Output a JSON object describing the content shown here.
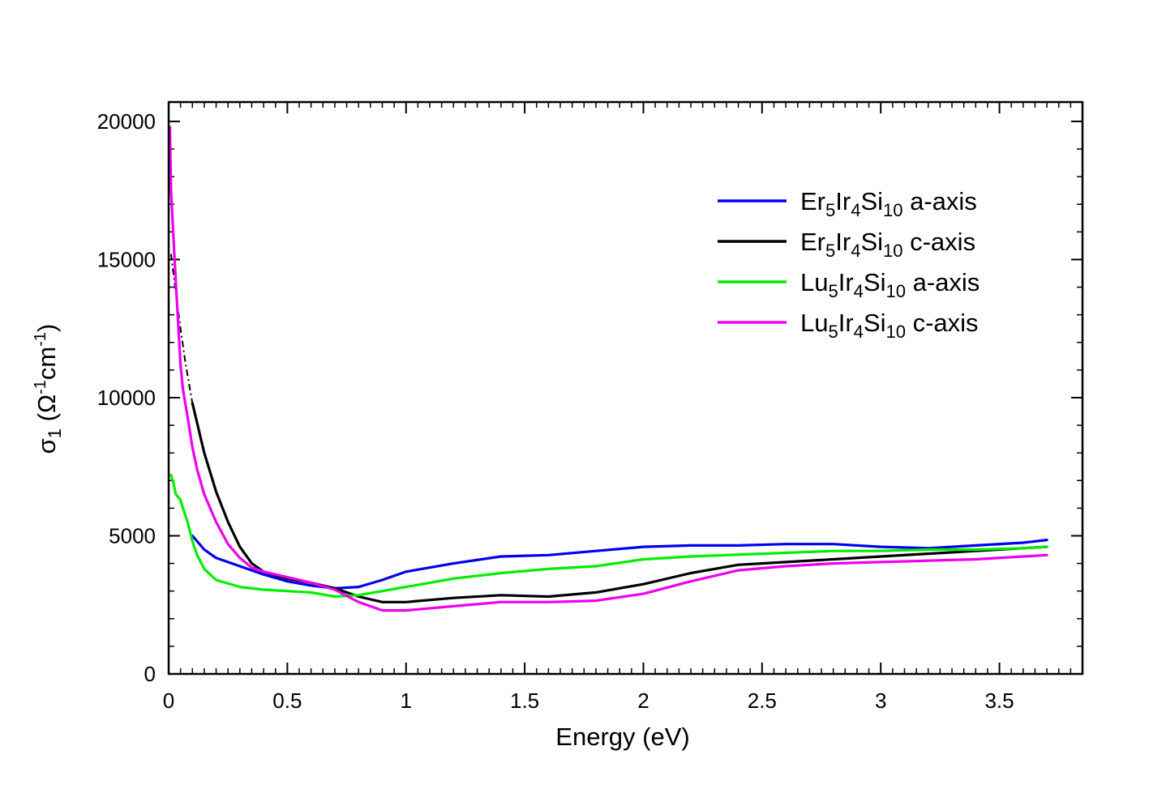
{
  "chart_data": {
    "type": "line",
    "title": "",
    "xlabel": "Energy (eV)",
    "ylabel": {
      "symbol": "σ",
      "subscript": "1",
      "units_open": " (Ω",
      "exp1": "-1",
      "cm": "cm",
      "exp2": "-1",
      "units_close": ")"
    },
    "xlim": [
      0,
      3.85
    ],
    "ylim": [
      0,
      20700
    ],
    "x_ticks": [
      {
        "value": 0,
        "label": "0"
      },
      {
        "value": 0.5,
        "label": "0.5"
      },
      {
        "value": 1,
        "label": "1"
      },
      {
        "value": 1.5,
        "label": "1.5"
      },
      {
        "value": 2,
        "label": "2"
      },
      {
        "value": 2.5,
        "label": "2.5"
      },
      {
        "value": 3,
        "label": "3"
      },
      {
        "value": 3.5,
        "label": "3.5"
      }
    ],
    "y_ticks": [
      {
        "value": 0,
        "label": "0"
      },
      {
        "value": 5000,
        "label": "5000"
      },
      {
        "value": 10000,
        "label": "10000"
      },
      {
        "value": 15000,
        "label": "15000"
      },
      {
        "value": 20000,
        "label": "20000"
      }
    ],
    "grid": false,
    "legend_position": "upper-right",
    "series": [
      {
        "name": "Er5Ir4Si10 a-axis",
        "label_parts": [
          {
            "text": "Er"
          },
          {
            "text": "5",
            "sub": true
          },
          {
            "text": "Ir"
          },
          {
            "text": "4",
            "sub": true
          },
          {
            "text": "Si"
          },
          {
            "text": "10",
            "sub": true
          },
          {
            "text": " a-axis"
          }
        ],
        "color": "#0000ee",
        "x": [
          0.1,
          0.15,
          0.2,
          0.3,
          0.4,
          0.5,
          0.6,
          0.7,
          0.8,
          0.9,
          1.0,
          1.2,
          1.4,
          1.6,
          1.8,
          2.0,
          2.2,
          2.4,
          2.6,
          2.8,
          3.0,
          3.2,
          3.4,
          3.6,
          3.7
        ],
        "y": [
          5000,
          4500,
          4200,
          3900,
          3600,
          3350,
          3200,
          3100,
          3150,
          3400,
          3700,
          4000,
          4250,
          4300,
          4450,
          4600,
          4650,
          4650,
          4700,
          4700,
          4600,
          4550,
          4650,
          4750,
          4850
        ]
      },
      {
        "name": "Er5Ir4Si10 c-axis",
        "label_parts": [
          {
            "text": "Er"
          },
          {
            "text": "5",
            "sub": true
          },
          {
            "text": "Ir"
          },
          {
            "text": "4",
            "sub": true
          },
          {
            "text": "Si"
          },
          {
            "text": "10",
            "sub": true
          },
          {
            "text": " c-axis"
          }
        ],
        "color": "#000000",
        "x": [
          0.1,
          0.15,
          0.2,
          0.25,
          0.3,
          0.35,
          0.4,
          0.5,
          0.6,
          0.7,
          0.8,
          0.9,
          1.0,
          1.2,
          1.4,
          1.6,
          1.8,
          2.0,
          2.2,
          2.4,
          2.6,
          2.8,
          3.0,
          3.2,
          3.4,
          3.6,
          3.7
        ],
        "y": [
          9800,
          8000,
          6600,
          5500,
          4600,
          4000,
          3700,
          3450,
          3300,
          3100,
          2800,
          2600,
          2600,
          2750,
          2850,
          2800,
          2950,
          3250,
          3650,
          3950,
          4050,
          4150,
          4250,
          4350,
          4450,
          4550,
          4600
        ]
      },
      {
        "name": "Lu5Ir4Si10 a-axis",
        "label_parts": [
          {
            "text": "Lu"
          },
          {
            "text": "5",
            "sub": true
          },
          {
            "text": "Ir"
          },
          {
            "text": "4",
            "sub": true
          },
          {
            "text": "Si"
          },
          {
            "text": "10",
            "sub": true
          },
          {
            "text": " a-axis"
          }
        ],
        "color": "#00ee00",
        "x": [
          0.01,
          0.02,
          0.03,
          0.04,
          0.05,
          0.06,
          0.08,
          0.1,
          0.12,
          0.15,
          0.2,
          0.3,
          0.4,
          0.5,
          0.6,
          0.7,
          0.8,
          1.0,
          1.2,
          1.4,
          1.6,
          1.8,
          2.0,
          2.2,
          2.5,
          2.8,
          3.0,
          3.2,
          3.4,
          3.6,
          3.7
        ],
        "y": [
          7200,
          6900,
          6500,
          6400,
          6300,
          6000,
          5500,
          4800,
          4300,
          3800,
          3400,
          3150,
          3050,
          3000,
          2950,
          2800,
          2850,
          3150,
          3450,
          3650,
          3800,
          3900,
          4150,
          4250,
          4350,
          4450,
          4450,
          4500,
          4500,
          4550,
          4600
        ]
      },
      {
        "name": "Lu5Ir4Si10 c-axis",
        "label_parts": [
          {
            "text": "Lu"
          },
          {
            "text": "5",
            "sub": true
          },
          {
            "text": "Ir"
          },
          {
            "text": "4",
            "sub": true
          },
          {
            "text": "Si"
          },
          {
            "text": "10",
            "sub": true
          },
          {
            "text": " c-axis"
          }
        ],
        "color": "#ee00ee",
        "x": [
          0.005,
          0.01,
          0.02,
          0.03,
          0.04,
          0.05,
          0.06,
          0.08,
          0.1,
          0.12,
          0.15,
          0.2,
          0.25,
          0.3,
          0.35,
          0.4,
          0.5,
          0.6,
          0.7,
          0.8,
          0.9,
          1.0,
          1.2,
          1.4,
          1.6,
          1.8,
          2.0,
          2.2,
          2.4,
          2.6,
          2.8,
          3.0,
          3.2,
          3.4,
          3.6,
          3.7
        ],
        "y": [
          19800,
          17500,
          15800,
          14200,
          12700,
          11200,
          10300,
          9300,
          8200,
          7400,
          6500,
          5500,
          4700,
          4200,
          3850,
          3700,
          3500,
          3300,
          3050,
          2600,
          2300,
          2300,
          2450,
          2600,
          2600,
          2650,
          2900,
          3350,
          3750,
          3900,
          4000,
          4050,
          4100,
          4150,
          4250,
          4300
        ]
      }
    ],
    "extrapolation": {
      "name": "Er5Ir4Si10 c-axis low-energy extrapolation",
      "color": "#000000",
      "style": "dash-dot",
      "x": [
        0.01,
        0.03,
        0.05,
        0.07,
        0.09,
        0.1
      ],
      "y": [
        15200,
        13800,
        12500,
        11300,
        10300,
        9800
      ]
    }
  }
}
